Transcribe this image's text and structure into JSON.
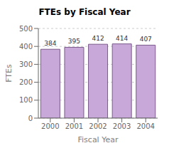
{
  "chart_data": {
    "type": "bar",
    "title": "FTEs by Fiscal Year",
    "xlabel": "Fiscal Year",
    "ylabel": "FTEs",
    "categories": [
      "2000",
      "2001",
      "2002",
      "2003",
      "2004"
    ],
    "values": [
      384,
      395,
      412,
      414,
      407
    ],
    "color": "#c8a8d8",
    "ylim": [
      0,
      500
    ],
    "yticks": [
      0,
      100,
      200,
      300,
      400,
      500
    ],
    "grid": true,
    "data_labels": true
  }
}
